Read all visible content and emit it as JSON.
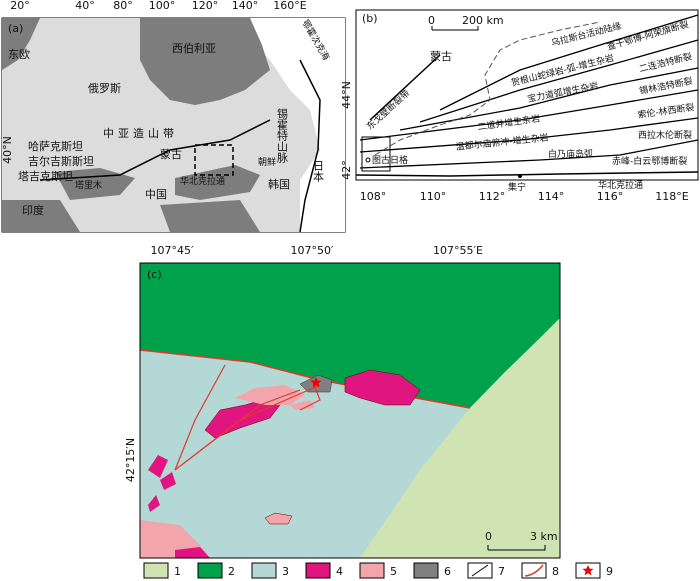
{
  "panel_a": {
    "label": "(a)",
    "lon_ticks": [
      "20°",
      "40°",
      "80°",
      "100°",
      "120°",
      "140°",
      "160°E"
    ],
    "lat_tick": "40°N",
    "regions": [
      "东欧",
      "俄罗斯",
      "西伯利亚",
      "哈萨克斯坦",
      "中亚造山带",
      "蒙古",
      "吉尔吉斯斯坦",
      "塔吉克斯坦",
      "塔里木",
      "中国",
      "华北克拉通",
      "朝鲜",
      "韩国",
      "日本",
      "锡霍特山脉",
      "鄂霍次克海",
      "印度"
    ]
  },
  "panel_b": {
    "label": "(b)",
    "scale": [
      "0",
      "200 km"
    ],
    "lat_ticks": [
      "44°N",
      "42°"
    ],
    "lon_ticks": [
      "108°",
      "110°",
      "112°",
      "114°",
      "116°",
      "118°E"
    ],
    "labels": [
      "蒙古",
      "东戈壁断裂带",
      "乌拉斯台活动陆缘",
      "查干鄂博-阿荣旗断裂",
      "贺根山蛇绿岩-弧-增生杂岩",
      "二连浩特断裂",
      "宝力道弧增生杂岩",
      "锡林浩特断裂",
      "二道井增生杂岩",
      "索伦-林西断裂",
      "温都尔庙俯冲-增生杂岩",
      "西拉木伦断裂",
      "白乃庙岛弧",
      "赤峰-白云鄂博断裂",
      "图古日格",
      "华北克拉通",
      "集宁"
    ]
  },
  "panel_c": {
    "label": "(c)",
    "lon_ticks": [
      "107°45′",
      "107°50′",
      "107°55′E"
    ],
    "lat_tick": "42°15′N",
    "scale": [
      "0",
      "3 km"
    ]
  },
  "legend": [
    "1",
    "2",
    "3",
    "4",
    "5",
    "6",
    "7",
    "8",
    "9"
  ]
}
